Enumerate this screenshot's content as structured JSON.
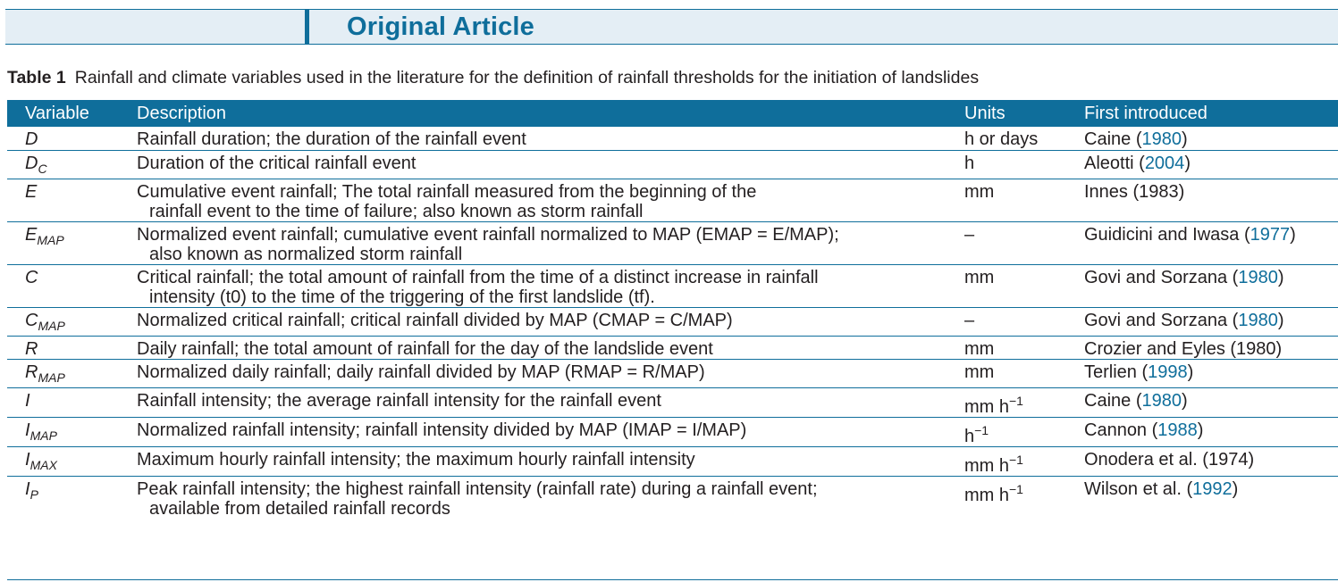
{
  "header": {
    "title": "Original Article"
  },
  "caption": {
    "label": "Table 1",
    "text": "Rainfall and climate variables used in the literature for the definition of rainfall thresholds for the initiation of landslides"
  },
  "table": {
    "columns": [
      "Variable",
      "Description",
      "Units",
      "First introduced"
    ],
    "rows": [
      {
        "var": "D",
        "var_sub": "",
        "desc1": "Rainfall duration; the duration of the rainfall event",
        "desc2": "",
        "units": "h or days",
        "units_sup": "",
        "author": "Caine (",
        "year": "1980",
        "close": ")"
      },
      {
        "var": "D",
        "var_sub": "C",
        "desc1": "Duration of the critical rainfall event",
        "desc2": "",
        "units": "h",
        "units_sup": "",
        "author": "Aleotti (",
        "year": "2004",
        "close": ")"
      },
      {
        "var": "E",
        "var_sub": "",
        "desc1": "Cumulative event rainfall; The total rainfall measured from the beginning of the",
        "desc2": "rainfall event to the time of failure; also known as storm rainfall",
        "units": "mm",
        "units_sup": "",
        "author": "Innes (1983)",
        "year": "",
        "close": ""
      },
      {
        "var": "E",
        "var_sub": "MAP",
        "desc1": "Normalized event rainfall; cumulative event rainfall normalized to MAP (EMAP = E/MAP);",
        "desc2": "also known as normalized storm rainfall",
        "units": "–",
        "units_sup": "",
        "author": "Guidicini and Iwasa (",
        "year": "1977",
        "close": ")"
      },
      {
        "var": "C",
        "var_sub": "",
        "desc1": "Critical rainfall; the total amount of rainfall from the time of a distinct increase in rainfall",
        "desc2": "intensity (t0) to the time of the triggering of the first landslide (tf).",
        "units": "mm",
        "units_sup": "",
        "author": "Govi and Sorzana (",
        "year": "1980",
        "close": ")"
      },
      {
        "var": "C",
        "var_sub": "MAP",
        "desc1": "Normalized critical rainfall; critical rainfall divided by MAP (CMAP = C/MAP)",
        "desc2": "",
        "units": "–",
        "units_sup": "",
        "author": "Govi and Sorzana (",
        "year": "1980",
        "close": ")"
      },
      {
        "var": "R",
        "var_sub": "",
        "desc1": "Daily rainfall; the total amount of rainfall for the day of the landslide event",
        "desc2": "",
        "units": "mm",
        "units_sup": "",
        "author": "Crozier and Eyles (1980)",
        "year": "",
        "close": ""
      },
      {
        "var": "R",
        "var_sub": "MAP",
        "desc1": "Normalized daily rainfall; daily rainfall divided by MAP (RMAP = R/MAP)",
        "desc2": "",
        "units": "mm",
        "units_sup": "",
        "author": "Terlien (",
        "year": "1998",
        "close": ")"
      },
      {
        "var": "I",
        "var_sub": "",
        "desc1": "Rainfall intensity; the average rainfall intensity for the rainfall event",
        "desc2": "",
        "units": "mm h",
        "units_sup": "−1",
        "author": "Caine (",
        "year": "1980",
        "close": ")"
      },
      {
        "var": "I",
        "var_sub": "MAP",
        "desc1": "Normalized rainfall intensity; rainfall intensity divided by MAP (IMAP = I/MAP)",
        "desc2": "",
        "units": "h",
        "units_sup": "−1",
        "author": "Cannon (",
        "year": "1988",
        "close": ")"
      },
      {
        "var": "I",
        "var_sub": "MAX",
        "desc1": "Maximum hourly rainfall intensity; the maximum hourly rainfall intensity",
        "desc2": "",
        "units": "mm h",
        "units_sup": "−1",
        "author": "Onodera et al. (1974)",
        "year": "",
        "close": ""
      },
      {
        "var": "I",
        "var_sub": "P",
        "desc1": "Peak rainfall intensity; the highest rainfall intensity (rainfall rate) during a rainfall event;",
        "desc2": "available from detailed rainfall records",
        "units": "mm h",
        "units_sup": "−1",
        "author": "Wilson et al. (",
        "year": "1992",
        "close": ")"
      }
    ]
  },
  "colors": {
    "accent": "#0f6e9b",
    "band": "#e4eef5",
    "text": "#231f20"
  }
}
